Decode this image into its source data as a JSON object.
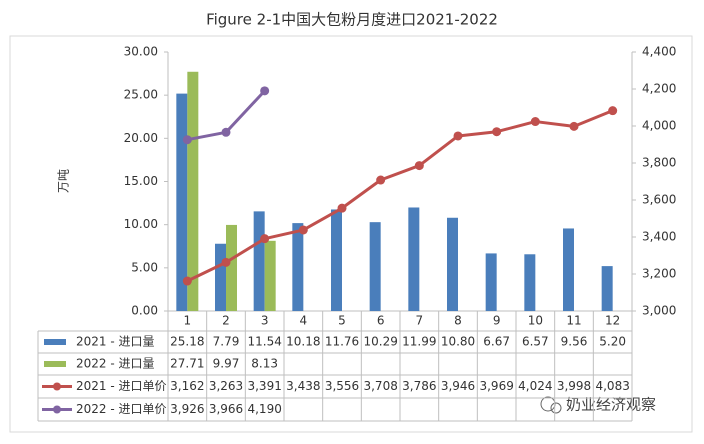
{
  "chart_data": {
    "type": "bar",
    "title": "Figure 2-1中国大包粉月度进口2021-2022",
    "y_label": "万吨",
    "watermark": "奶业经济观察",
    "categories": [
      "1",
      "2",
      "3",
      "4",
      "5",
      "6",
      "7",
      "8",
      "9",
      "10",
      "11",
      "12"
    ],
    "series": [
      {
        "name": "2021 - 进口量",
        "type": "bar",
        "color": "#4a7ebb",
        "values": [
          25.18,
          7.79,
          11.54,
          10.18,
          11.76,
          10.29,
          11.99,
          10.8,
          6.67,
          6.57,
          9.56,
          5.2
        ],
        "value_labels": [
          "25.18",
          "7.79",
          "11.54",
          "10.18",
          "11.76",
          "10.29",
          "11.99",
          "10.80",
          "6.67",
          "6.57",
          "9.56",
          "5.20"
        ]
      },
      {
        "name": "2022 - 进口量",
        "type": "bar",
        "color": "#9bbb59",
        "values": [
          27.71,
          9.97,
          8.13,
          null,
          null,
          null,
          null,
          null,
          null,
          null,
          null,
          null
        ],
        "value_labels": [
          "27.71",
          "9.97",
          "8.13",
          null,
          null,
          null,
          null,
          null,
          null,
          null,
          null,
          null
        ]
      },
      {
        "name": "2021 - 进口单价",
        "type": "line",
        "axis": "y2",
        "color": "#c0504d",
        "values": [
          3162,
          3263,
          3391,
          3438,
          3556,
          3708,
          3786,
          3946,
          3969,
          4024,
          3998,
          4083
        ],
        "value_labels": [
          "3,162",
          "3,263",
          "3,391",
          "3,438",
          "3,556",
          "3,708",
          "3,786",
          "3,946",
          "3,969",
          "4,024",
          "3,998",
          "4,083"
        ]
      },
      {
        "name": "2022 - 进口单价",
        "type": "line",
        "axis": "y2",
        "color": "#8064a2",
        "values": [
          3926,
          3966,
          4190,
          null,
          null,
          null,
          null,
          null,
          null,
          null,
          null,
          null
        ],
        "value_labels": [
          "3,926",
          "3,966",
          "4,190",
          null,
          null,
          null,
          null,
          null,
          null,
          null,
          null,
          null
        ]
      }
    ],
    "ylim": [
      0,
      30
    ],
    "yticks": [
      {
        "value": 0,
        "label": "0.00"
      },
      {
        "value": 5,
        "label": "5.00"
      },
      {
        "value": 10,
        "label": "10.00"
      },
      {
        "value": 15,
        "label": "15.00"
      },
      {
        "value": 20,
        "label": "20.00"
      },
      {
        "value": 25,
        "label": "25.00"
      },
      {
        "value": 30,
        "label": "30.00"
      }
    ],
    "y2lim": [
      3000,
      4400
    ],
    "y2ticks": [
      {
        "value": 3000,
        "label": "3,000"
      },
      {
        "value": 3200,
        "label": "3,200"
      },
      {
        "value": 3400,
        "label": "3,400"
      },
      {
        "value": 3600,
        "label": "3,600"
      },
      {
        "value": 3800,
        "label": "3,800"
      },
      {
        "value": 4000,
        "label": "4,000"
      },
      {
        "value": 4200,
        "label": "4,200"
      },
      {
        "value": 4400,
        "label": "4,400"
      }
    ],
    "grid": false
  }
}
